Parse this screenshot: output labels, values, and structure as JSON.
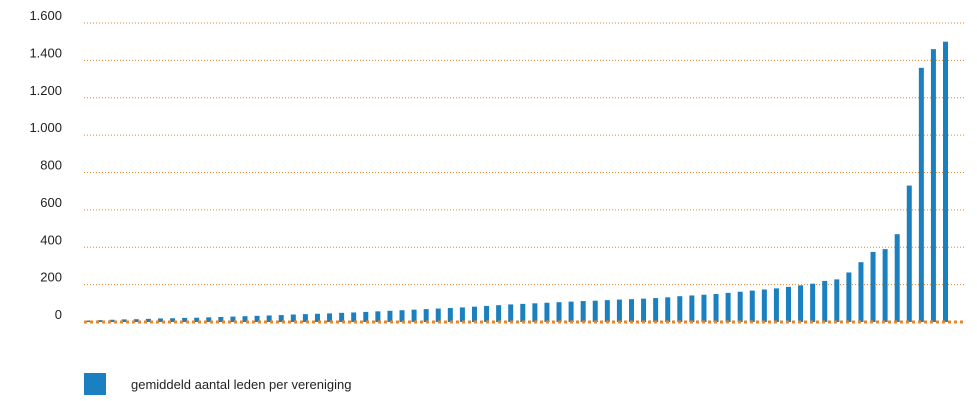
{
  "chart_data": {
    "type": "bar",
    "title": "",
    "xlabel": "",
    "ylabel": "",
    "ylim": [
      0,
      1600
    ],
    "yticks": [
      {
        "value": 0,
        "label": "0"
      },
      {
        "value": 200,
        "label": "200"
      },
      {
        "value": 400,
        "label": "400"
      },
      {
        "value": 600,
        "label": "600"
      },
      {
        "value": 800,
        "label": "800"
      },
      {
        "value": 1000,
        "label": "1.000"
      },
      {
        "value": 1200,
        "label": "1.200"
      },
      {
        "value": 1400,
        "label": "1.400"
      },
      {
        "value": 1600,
        "label": "1.600"
      }
    ],
    "grid": true,
    "legend_position": "bottom-left",
    "series": [
      {
        "name": "gemiddeld aantal leden per vereniging",
        "color": "#1a80c0",
        "values": [
          8,
          10,
          12,
          14,
          15,
          17,
          19,
          20,
          22,
          23,
          25,
          27,
          29,
          31,
          33,
          35,
          37,
          40,
          42,
          44,
          46,
          49,
          51,
          54,
          57,
          60,
          63,
          66,
          69,
          72,
          75,
          78,
          82,
          86,
          90,
          94,
          97,
          100,
          103,
          106,
          109,
          112,
          114,
          117,
          120,
          122,
          125,
          128,
          132,
          138,
          142,
          146,
          150,
          156,
          162,
          168,
          174,
          180,
          188,
          196,
          205,
          220,
          228,
          265,
          320,
          375,
          390,
          470,
          730,
          1360,
          1460,
          1500
        ]
      }
    ],
    "colors": {
      "bar": "#1a80c0",
      "grid": "#e8862a",
      "baseline": "#e8862a"
    }
  }
}
